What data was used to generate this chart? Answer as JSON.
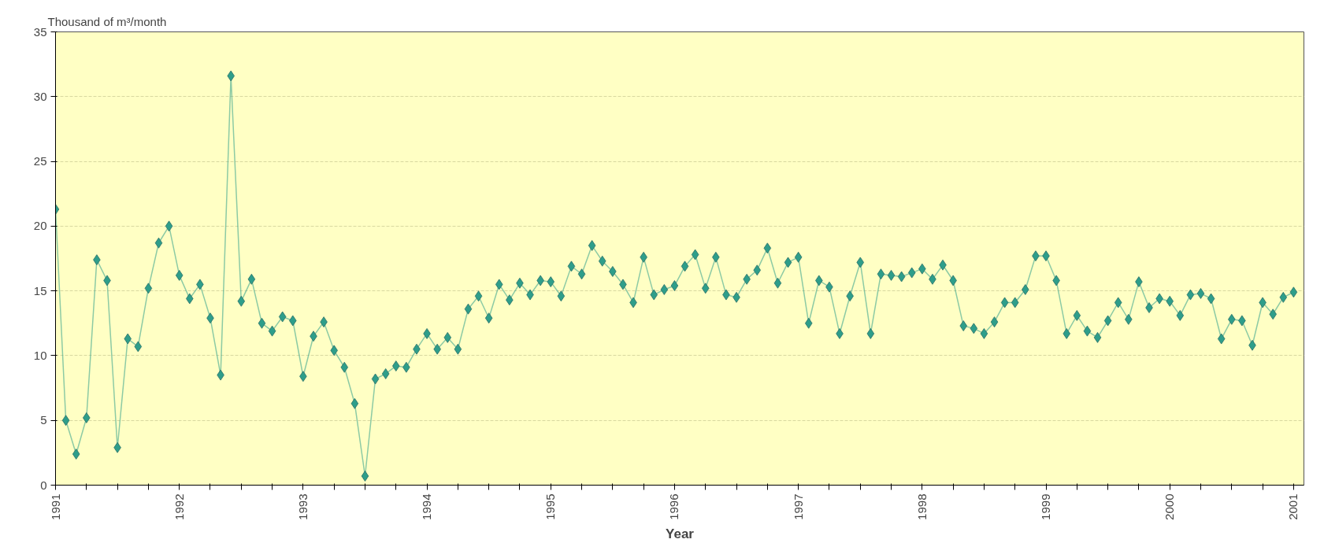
{
  "chart_data": {
    "type": "line",
    "ylabel": "Thousand of m³/month",
    "xlabel": "Year",
    "x": [
      "1991-01",
      "1991-02",
      "1991-03",
      "1991-04",
      "1991-05",
      "1991-06",
      "1991-07",
      "1991-08",
      "1991-09",
      "1991-10",
      "1991-11",
      "1991-12",
      "1992-01",
      "1992-02",
      "1992-03",
      "1992-04",
      "1992-05",
      "1992-06",
      "1992-07",
      "1992-08",
      "1992-09",
      "1992-10",
      "1992-11",
      "1992-12",
      "1993-01",
      "1993-02",
      "1993-03",
      "1993-04",
      "1993-05",
      "1993-06",
      "1993-07",
      "1993-08",
      "1993-09",
      "1993-10",
      "1993-11",
      "1993-12",
      "1994-01",
      "1994-02",
      "1994-03",
      "1994-04",
      "1994-05",
      "1994-06",
      "1994-07",
      "1994-08",
      "1994-09",
      "1994-10",
      "1994-11",
      "1994-12",
      "1995-01",
      "1995-02",
      "1995-03",
      "1995-04",
      "1995-05",
      "1995-06",
      "1995-07",
      "1995-08",
      "1995-09",
      "1995-10",
      "1995-11",
      "1995-12",
      "1996-01",
      "1996-02",
      "1996-03",
      "1996-04",
      "1996-05",
      "1996-06",
      "1996-07",
      "1996-08",
      "1996-09",
      "1996-10",
      "1996-11",
      "1996-12",
      "1997-01",
      "1997-02",
      "1997-03",
      "1997-04",
      "1997-05",
      "1997-06",
      "1997-07",
      "1997-08",
      "1997-09",
      "1997-10",
      "1997-11",
      "1997-12",
      "1998-01",
      "1998-02",
      "1998-03",
      "1998-04",
      "1998-05",
      "1998-06",
      "1998-07",
      "1998-08",
      "1998-09",
      "1998-10",
      "1998-11",
      "1998-12",
      "1999-01",
      "1999-02",
      "1999-03",
      "1999-04",
      "1999-05",
      "1999-06",
      "1999-07",
      "1999-08",
      "1999-09",
      "1999-10",
      "1999-11",
      "1999-12",
      "2000-01",
      "2000-02",
      "2000-03",
      "2000-04",
      "2000-05",
      "2000-06",
      "2000-07",
      "2000-08",
      "2000-09",
      "2000-10",
      "2000-11",
      "2000-12",
      "2001-01"
    ],
    "series": [
      {
        "color": "#2e9e8a",
        "values": [
          21.3,
          5.0,
          2.4,
          5.2,
          17.4,
          15.8,
          2.9,
          11.3,
          10.7,
          15.2,
          18.7,
          20.0,
          16.2,
          14.4,
          15.5,
          12.9,
          8.5,
          31.6,
          14.2,
          15.9,
          12.5,
          11.9,
          13.0,
          12.7,
          8.4,
          11.5,
          12.6,
          10.4,
          9.1,
          6.3,
          0.7,
          8.2,
          8.6,
          9.2,
          9.1,
          10.5,
          11.7,
          10.5,
          11.4,
          10.5,
          13.6,
          14.6,
          12.9,
          15.5,
          14.3,
          15.6,
          14.7,
          15.8,
          15.7,
          14.6,
          16.9,
          16.3,
          18.5,
          17.3,
          16.5,
          15.5,
          14.1,
          17.6,
          14.7,
          15.1,
          15.4,
          16.9,
          17.8,
          15.2,
          17.6,
          14.7,
          14.5,
          15.9,
          16.6,
          18.3,
          15.6,
          17.2,
          17.6,
          12.5,
          15.8,
          15.3,
          11.7,
          14.6,
          17.2,
          11.7,
          16.3,
          16.2,
          16.1,
          16.4,
          16.7,
          15.9,
          17.0,
          15.8,
          12.3,
          12.1,
          11.7,
          12.6,
          14.1,
          14.1,
          15.1,
          17.7,
          17.7,
          15.8,
          11.7,
          13.1,
          11.9,
          11.4,
          12.7,
          14.1,
          12.8,
          15.7,
          13.7,
          14.4,
          14.2,
          13.1,
          14.7,
          14.8,
          14.4,
          11.3,
          12.8,
          12.7,
          10.8,
          14.1,
          13.2,
          14.5,
          14.9
        ]
      }
    ],
    "marker": "diamond",
    "grid": "y",
    "xlim": [
      "1991-01",
      "2001-02"
    ],
    "xticks": [
      {
        "value": "1991-01",
        "label": "1991"
      },
      {
        "value": "1991-04",
        "label": null
      },
      {
        "value": "1991-07",
        "label": null
      },
      {
        "value": "1991-10",
        "label": null
      },
      {
        "value": "1992-01",
        "label": "1992"
      },
      {
        "value": "1992-04",
        "label": null
      },
      {
        "value": "1992-07",
        "label": null
      },
      {
        "value": "1992-10",
        "label": null
      },
      {
        "value": "1993-01",
        "label": "1993"
      },
      {
        "value": "1993-04",
        "label": null
      },
      {
        "value": "1993-07",
        "label": null
      },
      {
        "value": "1993-10",
        "label": null
      },
      {
        "value": "1994-01",
        "label": "1994"
      },
      {
        "value": "1994-04",
        "label": null
      },
      {
        "value": "1994-07",
        "label": null
      },
      {
        "value": "1994-10",
        "label": null
      },
      {
        "value": "1995-01",
        "label": "1995"
      },
      {
        "value": "1995-04",
        "label": null
      },
      {
        "value": "1995-07",
        "label": null
      },
      {
        "value": "1995-10",
        "label": null
      },
      {
        "value": "1996-01",
        "label": "1996"
      },
      {
        "value": "1996-04",
        "label": null
      },
      {
        "value": "1996-07",
        "label": null
      },
      {
        "value": "1996-10",
        "label": null
      },
      {
        "value": "1997-01",
        "label": "1997"
      },
      {
        "value": "1997-04",
        "label": null
      },
      {
        "value": "1997-07",
        "label": null
      },
      {
        "value": "1997-10",
        "label": null
      },
      {
        "value": "1998-01",
        "label": "1998"
      },
      {
        "value": "1998-04",
        "label": null
      },
      {
        "value": "1998-07",
        "label": null
      },
      {
        "value": "1998-10",
        "label": null
      },
      {
        "value": "1999-01",
        "label": "1999"
      },
      {
        "value": "1999-04",
        "label": null
      },
      {
        "value": "1999-07",
        "label": null
      },
      {
        "value": "1999-10",
        "label": null
      },
      {
        "value": "2000-01",
        "label": "2000"
      },
      {
        "value": "2000-04",
        "label": null
      },
      {
        "value": "2000-07",
        "label": null
      },
      {
        "value": "2000-10",
        "label": null
      },
      {
        "value": "2001-01",
        "label": "2001"
      }
    ],
    "ylim": [
      0,
      35
    ],
    "yticks": [
      0,
      5,
      10,
      15,
      20,
      25,
      30,
      35
    ]
  }
}
